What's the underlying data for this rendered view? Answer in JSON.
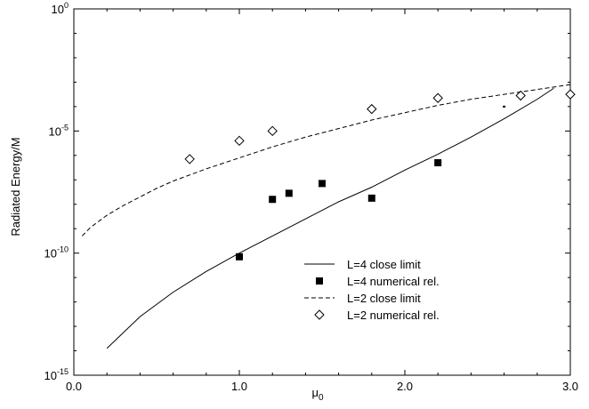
{
  "chart_data": {
    "type": "scatter",
    "xlabel": "μ",
    "xlabel_subscript": "0",
    "ylabel": "Radiated Energy/M",
    "xlim": [
      0.0,
      3.0
    ],
    "ylim_log10": [
      -15,
      0
    ],
    "y_scale": "log",
    "grid": false,
    "legend_position": "bottom-right",
    "x_ticks": [
      {
        "value": 0.0,
        "label": "0.0"
      },
      {
        "value": 1.0,
        "label": "1.0"
      },
      {
        "value": 2.0,
        "label": "2.0"
      },
      {
        "value": 3.0,
        "label": "3.0"
      }
    ],
    "y_ticks": [
      {
        "exp": 0,
        "base": "10",
        "sup": "0"
      },
      {
        "exp": -5,
        "base": "10",
        "sup": "-5"
      },
      {
        "exp": -10,
        "base": "10",
        "sup": "-10"
      },
      {
        "exp": -15,
        "base": "10",
        "sup": "-15"
      }
    ],
    "series": [
      {
        "name": "L=4 close limit",
        "kind": "line",
        "dash": "solid",
        "x": [
          0.2,
          0.4,
          0.6,
          0.8,
          1.0,
          1.2,
          1.4,
          1.6,
          1.8,
          2.0,
          2.2,
          2.4,
          2.6,
          2.8,
          2.9
        ],
        "log10_y": [
          -13.9,
          -12.6,
          -11.6,
          -10.75,
          -10.0,
          -9.3,
          -8.6,
          -7.9,
          -7.3,
          -6.6,
          -5.95,
          -5.25,
          -4.5,
          -3.7,
          -3.25
        ]
      },
      {
        "name": "L=4 numerical rel.",
        "kind": "points",
        "marker": "filled-square",
        "x": [
          1.0,
          1.2,
          1.3,
          1.5,
          1.8,
          2.2
        ],
        "log10_y": [
          -10.15,
          -7.8,
          -7.55,
          -7.15,
          -7.75,
          -6.3
        ]
      },
      {
        "name": "L=2 close limit",
        "kind": "line",
        "dash": "dashed",
        "x": [
          0.05,
          0.1,
          0.2,
          0.3,
          0.4,
          0.5,
          0.6,
          0.8,
          1.0,
          1.2,
          1.4,
          1.6,
          1.8,
          2.0,
          2.2,
          2.4,
          2.6,
          2.8,
          3.0
        ],
        "log10_y": [
          -9.3,
          -8.95,
          -8.45,
          -8.05,
          -7.7,
          -7.35,
          -7.05,
          -6.55,
          -6.1,
          -5.65,
          -5.25,
          -4.9,
          -4.55,
          -4.25,
          -3.95,
          -3.7,
          -3.5,
          -3.3,
          -3.1
        ]
      },
      {
        "name": "L=2 numerical rel.",
        "kind": "points",
        "marker": "open-diamond",
        "x": [
          0.7,
          1.0,
          1.2,
          1.8,
          2.2,
          2.7,
          3.0
        ],
        "log10_y": [
          -6.15,
          -5.4,
          -5.0,
          -4.1,
          -3.65,
          -3.55,
          -3.5
        ]
      }
    ],
    "extra_points": [
      {
        "x": 2.6,
        "log10_y": -4.0,
        "marker": "small-dot"
      }
    ],
    "legend": [
      {
        "label": "L=4 close limit"
      },
      {
        "label": "L=4 numerical rel."
      },
      {
        "label": "L=2 close limit"
      },
      {
        "label": "L=2 numerical rel."
      }
    ]
  }
}
